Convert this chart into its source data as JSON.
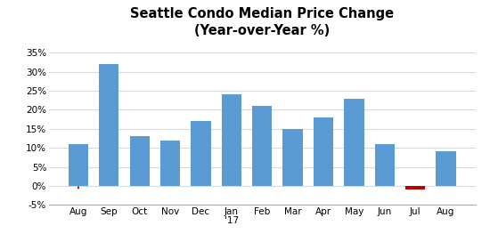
{
  "categories": [
    "Aug",
    "Sep",
    "Oct",
    "Nov",
    "Dec",
    "Jan\n'17",
    "Feb",
    "Mar",
    "Apr",
    "May",
    "Jun",
    "Jul",
    "Aug"
  ],
  "values": [
    11,
    32,
    13,
    12,
    17,
    24,
    21,
    15,
    18,
    23,
    11,
    -1,
    9
  ],
  "bar_colors": [
    "#5b9bd5",
    "#5b9bd5",
    "#5b9bd5",
    "#5b9bd5",
    "#5b9bd5",
    "#5b9bd5",
    "#5b9bd5",
    "#5b9bd5",
    "#5b9bd5",
    "#5b9bd5",
    "#5b9bd5",
    "#c00000",
    "#5b9bd5"
  ],
  "title_line1": "Seattle Condo Median Price Change",
  "title_line2": "(Year-over-Year %)",
  "ylim": [
    -5,
    37
  ],
  "yticks": [
    -5,
    0,
    5,
    10,
    15,
    20,
    25,
    30,
    35
  ],
  "ytick_labels": [
    "-5%",
    "0%",
    "5%",
    "10%",
    "15%",
    "20%",
    "25%",
    "30%",
    "35%"
  ],
  "background_color": "#ffffff",
  "grid_color": "#d9d9d9",
  "first_bar_marker_color": "#c00000",
  "title_fontsize": 10.5,
  "tick_fontsize": 7.5
}
